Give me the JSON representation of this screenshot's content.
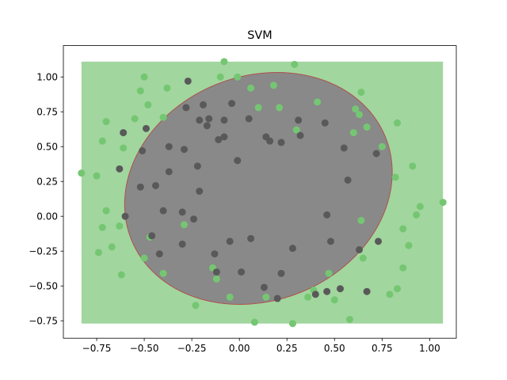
{
  "chart_data": {
    "type": "scatter",
    "title": "SVM",
    "xlabel": "",
    "ylabel": "",
    "xlim": [
      -0.925,
      1.14
    ],
    "ylim": [
      -0.875,
      1.225
    ],
    "xticks": [
      -0.75,
      -0.5,
      -0.25,
      0.0,
      0.25,
      0.5,
      0.75,
      1.0
    ],
    "xtick_labels": [
      "−0.75",
      "−0.50",
      "−0.25",
      "0.00",
      "0.25",
      "0.50",
      "0.75",
      "1.00"
    ],
    "yticks": [
      -0.75,
      -0.5,
      -0.25,
      0.0,
      0.25,
      0.5,
      0.75,
      1.0
    ],
    "ytick_labels": [
      "−0.75",
      "−0.50",
      "−0.25",
      "0.00",
      "0.25",
      "0.50",
      "0.75",
      "1.00"
    ],
    "grid": false,
    "decision_region": {
      "extent": {
        "x": [
          -0.83,
          1.07
        ],
        "y": [
          -0.77,
          1.11
        ]
      },
      "outer_color": "#a1d69e",
      "inner_color": "#898989",
      "boundary_color": "#b05050",
      "inner_ellipse": {
        "cx": 0.1,
        "cy": 0.2,
        "rx": 0.72,
        "ry": 0.59,
        "angle_deg": -22
      }
    },
    "series": [
      {
        "color": "#75c672",
        "points": [
          [
            -0.83,
            0.31
          ],
          [
            -0.75,
            0.29
          ],
          [
            -0.72,
            0.54
          ],
          [
            -0.7,
            0.68
          ],
          [
            -0.7,
            0.04
          ],
          [
            -0.72,
            -0.08
          ],
          [
            -0.74,
            -0.26
          ],
          [
            -0.67,
            -0.22
          ],
          [
            -0.63,
            -0.07
          ],
          [
            -0.62,
            -0.42
          ],
          [
            -0.61,
            0.49
          ],
          [
            -0.55,
            0.7
          ],
          [
            -0.52,
            0.9
          ],
          [
            -0.5,
            1.0
          ],
          [
            -0.48,
            0.8
          ],
          [
            -0.5,
            -0.3
          ],
          [
            -0.47,
            -0.15
          ],
          [
            -0.4,
            -0.41
          ],
          [
            -0.4,
            0.71
          ],
          [
            -0.38,
            0.92
          ],
          [
            -0.29,
            -0.06
          ],
          [
            -0.23,
            -0.64
          ],
          [
            -0.14,
            -0.37
          ],
          [
            -0.12,
            -0.45
          ],
          [
            -0.08,
            1.11
          ],
          [
            -0.1,
            1.0
          ],
          [
            -0.05,
            -0.58
          ],
          [
            -0.01,
            1.0
          ],
          [
            0.06,
            0.92
          ],
          [
            0.08,
            -0.76
          ],
          [
            0.1,
            0.78
          ],
          [
            0.14,
            -0.58
          ],
          [
            0.18,
            0.94
          ],
          [
            0.21,
            0.78
          ],
          [
            0.28,
            -0.77
          ],
          [
            0.29,
            1.09
          ],
          [
            0.3,
            0.62
          ],
          [
            0.36,
            -0.58
          ],
          [
            0.39,
            -0.53
          ],
          [
            0.41,
            0.82
          ],
          [
            0.47,
            -0.41
          ],
          [
            0.5,
            -0.6
          ],
          [
            0.58,
            -0.74
          ],
          [
            0.6,
            0.6
          ],
          [
            0.61,
            0.77
          ],
          [
            0.63,
            0.73
          ],
          [
            0.64,
            0.89
          ],
          [
            0.64,
            -0.03
          ],
          [
            0.65,
            -0.3
          ],
          [
            0.67,
            0.64
          ],
          [
            0.75,
            0.5
          ],
          [
            0.79,
            -0.56
          ],
          [
            0.82,
            0.28
          ],
          [
            0.83,
            0.67
          ],
          [
            0.83,
            -0.52
          ],
          [
            0.86,
            -0.09
          ],
          [
            0.86,
            -0.37
          ],
          [
            0.89,
            -0.21
          ],
          [
            0.91,
            0.36
          ],
          [
            0.93,
            0.01
          ],
          [
            0.95,
            0.07
          ],
          [
            1.07,
            0.1
          ]
        ]
      },
      {
        "color": "#595959",
        "points": [
          [
            -0.63,
            0.34
          ],
          [
            -0.61,
            0.6
          ],
          [
            -0.6,
            0.0
          ],
          [
            -0.52,
            0.21
          ],
          [
            -0.51,
            0.47
          ],
          [
            -0.49,
            0.63
          ],
          [
            -0.46,
            -0.14
          ],
          [
            -0.44,
            0.22
          ],
          [
            -0.42,
            -0.27
          ],
          [
            -0.4,
            0.04
          ],
          [
            -0.37,
            0.5
          ],
          [
            -0.37,
            0.32
          ],
          [
            -0.3,
            -0.2
          ],
          [
            -0.3,
            0.03
          ],
          [
            -0.29,
            0.48
          ],
          [
            -0.28,
            0.78
          ],
          [
            -0.27,
            0.97
          ],
          [
            -0.24,
            -0.02
          ],
          [
            -0.22,
            0.36
          ],
          [
            -0.21,
            0.18
          ],
          [
            -0.21,
            0.69
          ],
          [
            -0.19,
            0.8
          ],
          [
            -0.17,
            0.65
          ],
          [
            -0.16,
            0.7
          ],
          [
            -0.13,
            -0.27
          ],
          [
            -0.12,
            -0.4
          ],
          [
            -0.11,
            0.55
          ],
          [
            -0.08,
            0.69
          ],
          [
            -0.08,
            0.57
          ],
          [
            -0.05,
            -0.18
          ],
          [
            -0.04,
            0.81
          ],
          [
            -0.01,
            0.4
          ],
          [
            0.01,
            -0.4
          ],
          [
            0.05,
            0.7
          ],
          [
            0.06,
            -0.16
          ],
          [
            0.13,
            -0.51
          ],
          [
            0.14,
            0.57
          ],
          [
            0.16,
            0.54
          ],
          [
            0.2,
            -0.59
          ],
          [
            0.22,
            0.53
          ],
          [
            0.22,
            -0.41
          ],
          [
            0.28,
            -0.23
          ],
          [
            0.31,
            0.69
          ],
          [
            0.32,
            0.58
          ],
          [
            0.4,
            -0.56
          ],
          [
            0.45,
            0.67
          ],
          [
            0.46,
            -0.54
          ],
          [
            0.46,
            0.01
          ],
          [
            0.48,
            -0.18
          ],
          [
            0.53,
            -0.52
          ],
          [
            0.55,
            0.49
          ],
          [
            0.57,
            0.26
          ],
          [
            0.63,
            -0.24
          ],
          [
            0.67,
            -0.54
          ],
          [
            0.72,
            0.45
          ],
          [
            0.73,
            -0.18
          ]
        ]
      }
    ]
  }
}
